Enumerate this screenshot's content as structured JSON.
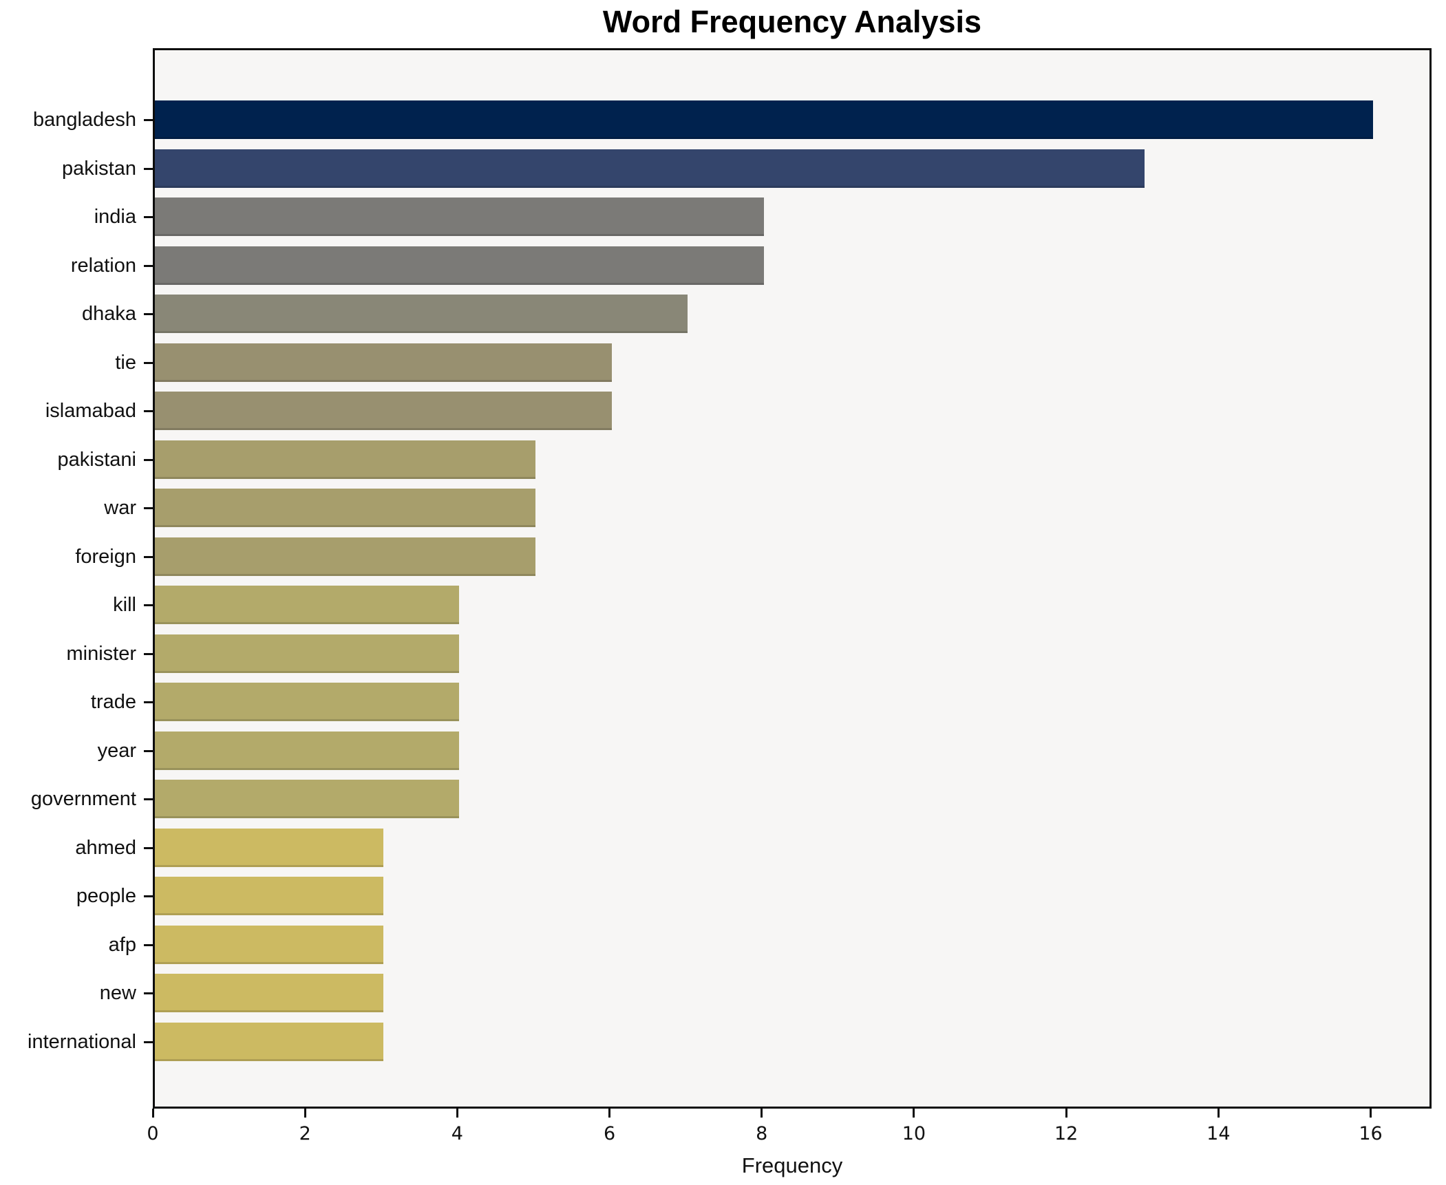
{
  "title": "Word Frequency Analysis",
  "chart_data": {
    "type": "bar",
    "orientation": "horizontal",
    "title": "Word Frequency Analysis",
    "xlabel": "Frequency",
    "ylabel": "",
    "categories": [
      "bangladesh",
      "pakistan",
      "india",
      "relation",
      "dhaka",
      "tie",
      "islamabad",
      "pakistani",
      "war",
      "foreign",
      "kill",
      "minister",
      "trade",
      "year",
      "government",
      "ahmed",
      "people",
      "afp",
      "new",
      "international"
    ],
    "values": [
      16,
      13,
      8,
      8,
      7,
      6,
      6,
      5,
      5,
      5,
      4,
      4,
      4,
      4,
      4,
      3,
      3,
      3,
      3,
      3
    ],
    "bar_colors": [
      "#00224e",
      "#34456c",
      "#7b7a77",
      "#7b7a77",
      "#898777",
      "#989070",
      "#989070",
      "#a79e6c",
      "#a79e6c",
      "#a79e6c",
      "#b3aa6a",
      "#b3aa6a",
      "#b3aa6a",
      "#b3aa6a",
      "#b3aa6a",
      "#ccba62",
      "#ccba62",
      "#ccba62",
      "#ccba62",
      "#ccba62"
    ],
    "x_ticks": [
      0,
      2,
      4,
      6,
      8,
      10,
      12,
      14,
      16
    ],
    "xlim": [
      0,
      16.8
    ],
    "grid": false,
    "legend": null,
    "plot_bg": "#f7f6f5",
    "fig_bg": "#ffffff",
    "spine_color": "#0d0d0d"
  }
}
